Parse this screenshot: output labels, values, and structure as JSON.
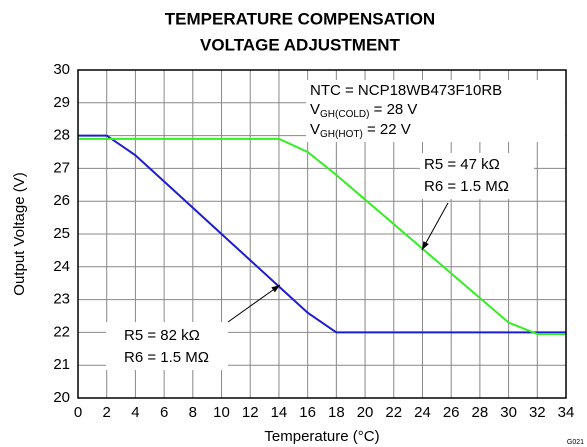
{
  "chart_data": {
    "type": "line",
    "title": [
      "TEMPERATURE COMPENSATION",
      "VOLTAGE ADJUSTMENT"
    ],
    "x_label": "Temperature (°C)",
    "y_label": "Output Voltage (V)",
    "x": [
      0,
      2,
      4,
      6,
      8,
      10,
      12,
      14,
      16,
      18,
      20,
      22,
      24,
      26,
      28,
      30,
      32,
      34
    ],
    "series": [
      {
        "name": "R5 = 82 kΩ, R6 = 1.5 MΩ",
        "color": "#1c1cd0",
        "values": [
          28,
          28,
          27.4,
          26.6,
          25.8,
          25.0,
          24.2,
          23.4,
          22.6,
          22,
          22,
          22,
          22,
          22,
          22,
          22,
          22,
          22
        ]
      },
      {
        "name": "R5 = 47 kΩ, R6 = 1.5 MΩ",
        "color": "#33ee22",
        "values": [
          27.9,
          27.9,
          27.9,
          27.9,
          27.9,
          27.9,
          27.9,
          27.9,
          27.5,
          26.8,
          26.05,
          25.3,
          24.55,
          23.8,
          23.05,
          22.3,
          21.95,
          21.95
        ]
      }
    ],
    "xlim": [
      0,
      34
    ],
    "xticks": [
      0,
      2,
      4,
      6,
      8,
      10,
      12,
      14,
      16,
      18,
      20,
      22,
      24,
      26,
      28,
      30,
      32,
      34
    ],
    "ylim": [
      20,
      30
    ],
    "yticks": [
      20,
      21,
      22,
      23,
      24,
      25,
      26,
      27,
      28,
      29,
      30
    ],
    "grid": true,
    "annotations": {
      "ntc": "NTC = NCP18WB473F10RB",
      "cold": {
        "main": "V",
        "sub": "GH(COLD)",
        "rest": " = 28 V"
      },
      "hot": {
        "main": "V",
        "sub": "GH(HOT)",
        "rest": " = 22 V"
      },
      "green_r5": "R5 = 47 kΩ",
      "green_r6": "R6 = 1.5 MΩ",
      "blue_r5": "R5 = 82 kΩ",
      "blue_r6": "R6 = 1.5 MΩ"
    },
    "figure_id": "G021"
  }
}
